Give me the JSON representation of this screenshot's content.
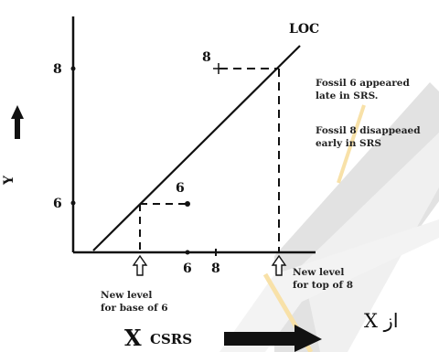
{
  "diagram": {
    "line_label": "LOC",
    "y_axis_label": "Y",
    "x_axis_label_big": "X",
    "x_axis_label_small": "CSRS",
    "y_ticks": [
      "8",
      "6"
    ],
    "x_ticks": [
      "6",
      "8"
    ],
    "point_labels": {
      "fossil_8": "8",
      "fossil_6": "6"
    },
    "annotation_fossil6": [
      "Fossil 6 appeared",
      "late in SRS."
    ],
    "annotation_fossil8": [
      "Fossil 8 disappeaed",
      "early in SRS"
    ],
    "caption_base6": [
      "New level",
      "for base of 6"
    ],
    "caption_top8": [
      "New level",
      "for top of 8"
    ],
    "corner_text": "X از"
  },
  "colors": {
    "ink": "#111111",
    "watermark_gray": "#cfcfcf",
    "watermark_light": "#e6e6e6",
    "watermark_orange": "#f6d88c"
  }
}
